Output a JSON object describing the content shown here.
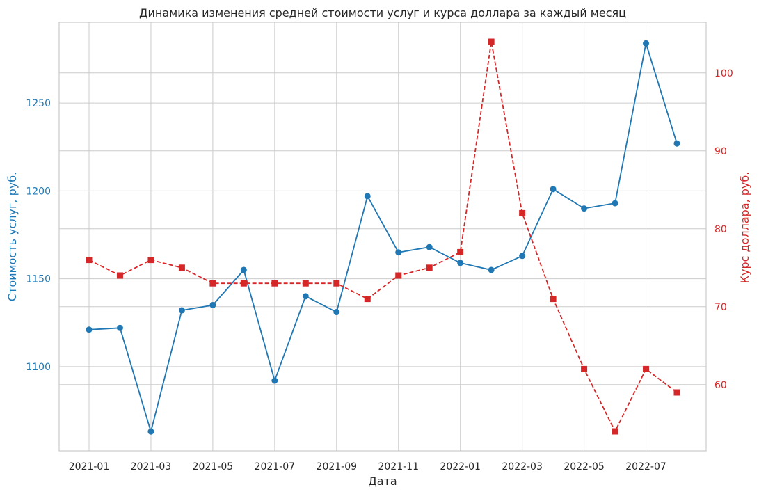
{
  "chart_data": {
    "type": "line",
    "title": "Динамика изменения средней стоимости услуг и курса доллара за каждый месяц",
    "xlabel": "Дата",
    "x": [
      "2021-01",
      "2021-02",
      "2021-03",
      "2021-04",
      "2021-05",
      "2021-06",
      "2021-07",
      "2021-08",
      "2021-09",
      "2021-10",
      "2021-11",
      "2021-12",
      "2022-01",
      "2022-02",
      "2022-03",
      "2022-04",
      "2022-05",
      "2022-06",
      "2022-07",
      "2022-08"
    ],
    "x_ticks": [
      "2021-01",
      "2021-03",
      "2021-05",
      "2021-07",
      "2021-09",
      "2021-11",
      "2022-01",
      "2022-03",
      "2022-05",
      "2022-07"
    ],
    "grid": true,
    "series": [
      {
        "name": "",
        "axis": "left",
        "ylabel": "Стоимость услуг, руб.",
        "color": "#1f77b4",
        "marker": "circle",
        "linestyle": "solid",
        "values": [
          1121,
          1122,
          1063,
          1132,
          1135,
          1155,
          1092,
          1140,
          1131,
          1197,
          1165,
          1168,
          1159,
          1155,
          1163,
          1201,
          1190,
          1193,
          1284,
          1227
        ],
        "ylim": [
          1052,
          1296
        ],
        "ticks": [
          1100,
          1150,
          1200,
          1250
        ]
      },
      {
        "name": "",
        "axis": "right",
        "ylabel": "Курс доллара, руб.",
        "color": "#d62728",
        "marker": "square",
        "linestyle": "dashed",
        "values": [
          76,
          74,
          76,
          75,
          73,
          73,
          73,
          73,
          73,
          71,
          74,
          75,
          77,
          104,
          82,
          71,
          62,
          54,
          62,
          59
        ],
        "ylim": [
          51.5,
          106.5
        ],
        "ticks": [
          60,
          70,
          80,
          90,
          100
        ]
      }
    ]
  }
}
